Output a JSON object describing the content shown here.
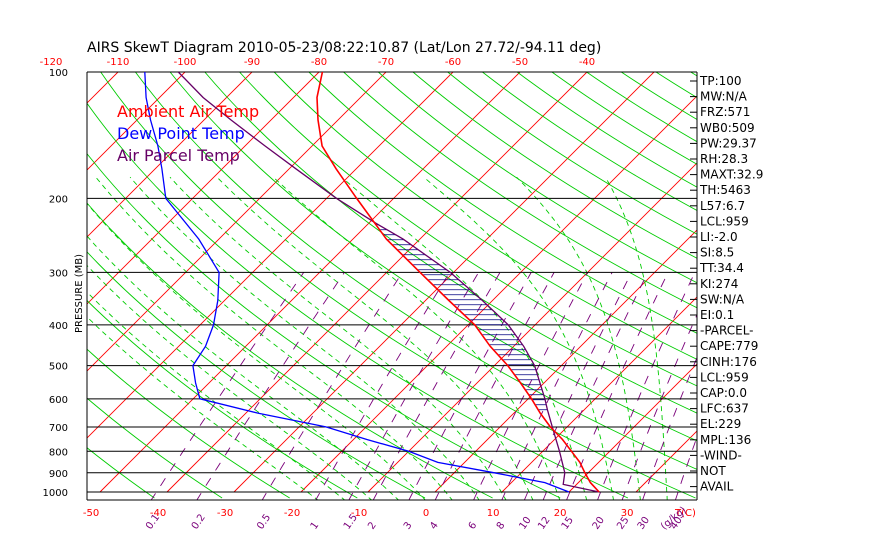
{
  "chart_data": {
    "type": "line",
    "title": "AIRS SkewT Diagram 2010-05-23/08:22:10.87 (Lat/Lon 27.72/-94.11 deg)",
    "ylabel": "PRESSURE (MB)",
    "y_scale": "log",
    "ylim": [
      1000,
      100
    ],
    "pressure_ticks": [
      "100",
      "200",
      "300",
      "400",
      "500",
      "600",
      "700",
      "800",
      "900",
      "1000"
    ],
    "top_temp_ticks": [
      "-120",
      "-110",
      "-100",
      "-90",
      "-80",
      "-70",
      "-60",
      "-50",
      "-40"
    ],
    "bottom_temp_ticks": [
      "-50",
      "-40",
      "-30",
      "-20",
      "-10",
      "0",
      "10",
      "20",
      "30"
    ],
    "bottom_temp_unit": "T(C)",
    "mixing_ratio_labels": [
      "0.1",
      "0.2",
      "0.5",
      "1",
      "1.5",
      "2",
      "3",
      "4",
      "6",
      "8",
      "10",
      "12",
      "15",
      "20",
      "25",
      "30",
      "40"
    ],
    "mixing_ratio_unit": "(g/kg)",
    "colors": {
      "ambient": "#ff0000",
      "dewpoint": "#0000ff",
      "parcel": "#660066",
      "isotherm": "#ff0000",
      "dry_adiabat": "#00cc00",
      "moist_adiabat": "#00cc00",
      "mixing_ratio": "#7a007a",
      "isobar": "#000000",
      "cape_hatch": "#000080"
    },
    "series": [
      {
        "name": "Ambient Air Temp",
        "key": "ambient",
        "points": [
          {
            "p": 1000,
            "t": 24.5
          },
          {
            "p": 950,
            "t": 21.8
          },
          {
            "p": 900,
            "t": 19.5
          },
          {
            "p": 850,
            "t": 17.2
          },
          {
            "p": 800,
            "t": 14.3
          },
          {
            "p": 750,
            "t": 11.2
          },
          {
            "p": 700,
            "t": 7.5
          },
          {
            "p": 650,
            "t": 4.0
          },
          {
            "p": 600,
            "t": 0.5
          },
          {
            "p": 550,
            "t": -3.5
          },
          {
            "p": 500,
            "t": -8.0
          },
          {
            "p": 450,
            "t": -13.5
          },
          {
            "p": 400,
            "t": -19.0
          },
          {
            "p": 350,
            "t": -26.5
          },
          {
            "p": 300,
            "t": -35.0
          },
          {
            "p": 250,
            "t": -45.0
          },
          {
            "p": 200,
            "t": -55.5
          },
          {
            "p": 170,
            "t": -63.0
          },
          {
            "p": 150,
            "t": -68.5
          },
          {
            "p": 130,
            "t": -73.0
          },
          {
            "p": 115,
            "t": -76.5
          },
          {
            "p": 100,
            "t": -79.5
          }
        ]
      },
      {
        "name": "Dew Point Temp",
        "key": "dewpoint",
        "points": [
          {
            "p": 1000,
            "t": 20.0
          },
          {
            "p": 950,
            "t": 15.0
          },
          {
            "p": 900,
            "t": 6.0
          },
          {
            "p": 850,
            "t": -4.0
          },
          {
            "p": 800,
            "t": -10.0
          },
          {
            "p": 750,
            "t": -18.0
          },
          {
            "p": 700,
            "t": -26.0
          },
          {
            "p": 650,
            "t": -38.0
          },
          {
            "p": 600,
            "t": -49.0
          },
          {
            "p": 550,
            "t": -52.0
          },
          {
            "p": 500,
            "t": -55.0
          },
          {
            "p": 450,
            "t": -56.0
          },
          {
            "p": 400,
            "t": -58.0
          },
          {
            "p": 350,
            "t": -61.0
          },
          {
            "p": 300,
            "t": -65.0
          },
          {
            "p": 250,
            "t": -73.0
          },
          {
            "p": 200,
            "t": -84.0
          },
          {
            "p": 170,
            "t": -89.0
          },
          {
            "p": 150,
            "t": -93.0
          },
          {
            "p": 130,
            "t": -98.0
          },
          {
            "p": 115,
            "t": -102.0
          },
          {
            "p": 100,
            "t": -106.0
          }
        ]
      },
      {
        "name": "Air Parcel Temp",
        "key": "parcel",
        "points": [
          {
            "p": 1000,
            "t": 24.5
          },
          {
            "p": 959,
            "t": 18.0
          },
          {
            "p": 900,
            "t": 16.5
          },
          {
            "p": 800,
            "t": 12.5
          },
          {
            "p": 700,
            "t": 7.8
          },
          {
            "p": 637,
            "t": 4.5
          },
          {
            "p": 600,
            "t": 2.5
          },
          {
            "p": 500,
            "t": -4.0
          },
          {
            "p": 450,
            "t": -8.5
          },
          {
            "p": 400,
            "t": -14.0
          },
          {
            "p": 350,
            "t": -21.5
          },
          {
            "p": 300,
            "t": -30.5
          },
          {
            "p": 250,
            "t": -42.5
          },
          {
            "p": 229,
            "t": -49.0
          },
          {
            "p": 200,
            "t": -58.5
          },
          {
            "p": 170,
            "t": -69.0
          },
          {
            "p": 150,
            "t": -77.0
          },
          {
            "p": 130,
            "t": -86.0
          },
          {
            "p": 115,
            "t": -93.5
          },
          {
            "p": 100,
            "t": -101.0
          }
        ]
      }
    ],
    "legend": {
      "placement": "top-left",
      "entries": [
        {
          "label": "Ambient Air Temp",
          "key": "ambient"
        },
        {
          "label": "Dew Point Temp",
          "key": "dewpoint"
        },
        {
          "label": "Air Parcel Temp",
          "key": "parcel"
        }
      ]
    },
    "indices": [
      "TP:100",
      "MW:N/A",
      "FRZ:571",
      "WB0:509",
      "PW:29.37",
      "RH:28.3",
      "MAXT:32.9",
      "TH:5463",
      "L57:6.7",
      "LCL:959",
      "LI:-2.0",
      "SI:8.5",
      "TT:34.4",
      "KI:274",
      "SW:N/A",
      "EI:0.1",
      "-PARCEL-",
      "CAPE:779",
      "CINH:176",
      "LCL:959",
      "CAP:0.0",
      "LFC:637",
      "EL:229",
      "MPL:136",
      "-WIND-",
      "NOT",
      "AVAIL"
    ]
  }
}
